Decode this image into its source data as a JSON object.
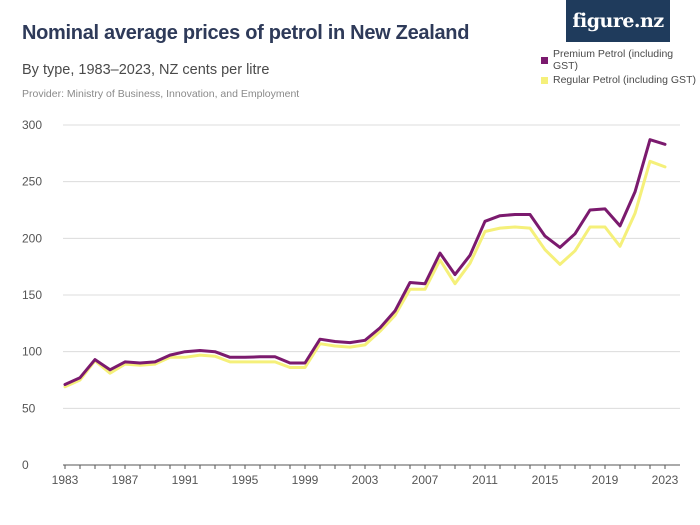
{
  "title": "Nominal average prices of petrol in New Zealand",
  "subtitle": "By type, 1983–2023, NZ cents per litre",
  "provider": "Provider: Ministry of Business, Innovation, and Employment",
  "logo_text": "figure.nz",
  "chart_data": {
    "type": "line",
    "x": [
      1983,
      1984,
      1985,
      1986,
      1987,
      1988,
      1989,
      1990,
      1991,
      1992,
      1993,
      1994,
      1995,
      1996,
      1997,
      1998,
      1999,
      2000,
      2001,
      2002,
      2003,
      2004,
      2005,
      2006,
      2007,
      2008,
      2009,
      2010,
      2011,
      2012,
      2013,
      2014,
      2015,
      2016,
      2017,
      2018,
      2019,
      2020,
      2021,
      2022,
      2023
    ],
    "series": [
      {
        "name": "Premium Petrol (including GST)",
        "color": "#7b1a6e",
        "values": [
          71,
          77,
          93,
          84,
          91,
          90,
          91,
          97,
          100,
          101,
          100,
          95,
          95,
          95.5,
          95.5,
          90,
          90,
          111,
          109,
          108,
          110,
          121,
          136,
          161,
          160,
          187,
          168,
          185,
          215,
          220,
          221,
          221,
          202,
          192,
          204,
          225,
          226,
          211,
          241,
          287,
          283
        ]
      },
      {
        "name": "Regular Petrol (including GST)",
        "color": "#f5f07a",
        "values": [
          69,
          75,
          92,
          81,
          89,
          88,
          89,
          95,
          95,
          97,
          96,
          91,
          91,
          91,
          91,
          86,
          86,
          107,
          105,
          104,
          106,
          118,
          132,
          155,
          155,
          181,
          160,
          178,
          206,
          209,
          210,
          209,
          190,
          177,
          189,
          210,
          210,
          193,
          222,
          268,
          263
        ]
      }
    ],
    "y_ticks": [
      0,
      50,
      100,
      150,
      200,
      250,
      300
    ],
    "x_ticks": [
      1983,
      1987,
      1991,
      1995,
      1999,
      2003,
      2007,
      2011,
      2015,
      2019,
      2023
    ],
    "ylim": [
      0,
      300
    ],
    "xlim": [
      1983,
      2023
    ],
    "grid": true,
    "legend_position": "top-right"
  }
}
